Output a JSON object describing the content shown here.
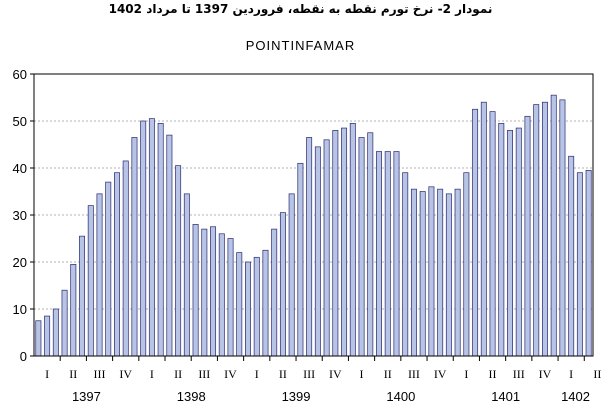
{
  "caption": "نمودار 2- نرخ تورم نقطه به نقطه، فروردین 1397 تا مرداد 1402",
  "chart_data": {
    "type": "bar",
    "title": "POINTINFAMAR",
    "xlabel": "",
    "ylabel": "",
    "ylim": [
      0,
      60
    ],
    "yticks": [
      0,
      10,
      20,
      30,
      40,
      50,
      60
    ],
    "grid": true,
    "legend": "none",
    "bar_color": "#b7c4e6",
    "bar_edge_color": "#2a2a6e",
    "quarter_labels": [
      "I",
      "II",
      "III",
      "IV",
      "I",
      "II",
      "III",
      "IV",
      "I",
      "II",
      "III",
      "IV",
      "I",
      "II",
      "III",
      "IV",
      "I",
      "II",
      "III",
      "IV",
      "I",
      "II"
    ],
    "year_labels": [
      "1397",
      "1398",
      "1399",
      "1400",
      "1401",
      "1402"
    ],
    "values": [
      7.5,
      8.5,
      10.0,
      14.0,
      19.5,
      25.5,
      32.0,
      34.5,
      37.0,
      39.0,
      41.5,
      46.5,
      50.0,
      50.5,
      49.5,
      47.0,
      40.5,
      34.5,
      28.0,
      27.0,
      27.5,
      26.0,
      25.0,
      22.0,
      20.0,
      21.0,
      22.5,
      27.0,
      30.5,
      34.5,
      41.0,
      46.5,
      44.5,
      46.0,
      48.0,
      48.5,
      49.5,
      46.5,
      47.5,
      43.5,
      43.5,
      43.5,
      39.0,
      35.5,
      35.0,
      36.0,
      35.5,
      34.5,
      35.5,
      39.0,
      52.5,
      54.0,
      52.0,
      49.5,
      48.0,
      48.5,
      51.0,
      53.5,
      54.0,
      55.5,
      54.5,
      42.5,
      39.0,
      39.5
    ]
  }
}
